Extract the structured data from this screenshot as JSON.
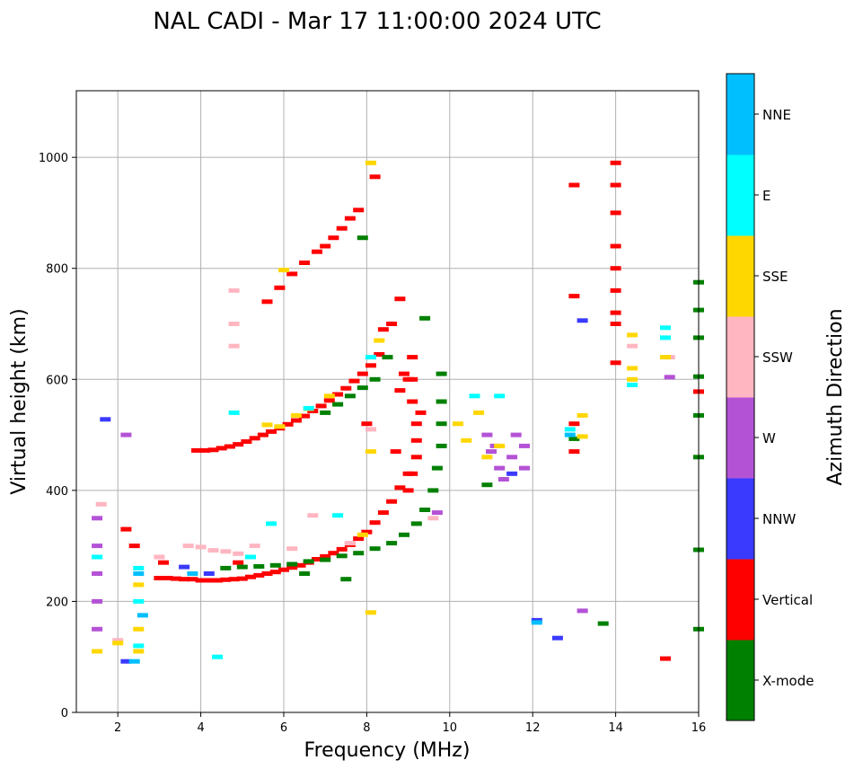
{
  "chart_data": {
    "type": "scatter",
    "title": "NAL CADI - Mar 17 11:00:00 2024 UTC",
    "xlabel": "Frequency (MHz)",
    "ylabel": "Virtual height (km)",
    "xlim": [
      1,
      16
    ],
    "ylim": [
      0,
      1120
    ],
    "xticks": [
      2,
      4,
      6,
      8,
      10,
      12,
      14,
      16
    ],
    "yticks": [
      0,
      200,
      400,
      600,
      800,
      1000
    ],
    "grid": true,
    "colorbar": {
      "label": "Azimuth Direction",
      "categories": [
        "X-mode",
        "Vertical",
        "NNW",
        "W",
        "SSW",
        "SSE",
        "E",
        "NNE"
      ],
      "colors": [
        "#008000",
        "#ff0000",
        "#3a3aff",
        "#b452d6",
        "#ffb6c1",
        "#ffd700",
        "#00ffff",
        "#00bfff"
      ]
    },
    "series": [
      {
        "name": "Vertical",
        "color": "#ff0000",
        "points": [
          [
            3.0,
            242
          ],
          [
            3.2,
            242
          ],
          [
            3.4,
            241
          ],
          [
            3.6,
            240
          ],
          [
            3.8,
            240
          ],
          [
            4.0,
            238
          ],
          [
            4.2,
            238
          ],
          [
            4.4,
            238
          ],
          [
            4.6,
            239
          ],
          [
            4.8,
            240
          ],
          [
            5.0,
            241
          ],
          [
            5.2,
            244
          ],
          [
            5.4,
            247
          ],
          [
            5.6,
            250
          ],
          [
            5.8,
            253
          ],
          [
            6.0,
            257
          ],
          [
            6.2,
            261
          ],
          [
            6.4,
            265
          ],
          [
            6.6,
            270
          ],
          [
            6.8,
            276
          ],
          [
            7.0,
            281
          ],
          [
            7.2,
            287
          ],
          [
            7.4,
            294
          ],
          [
            7.6,
            302
          ],
          [
            7.8,
            313
          ],
          [
            8.0,
            325
          ],
          [
            8.2,
            342
          ],
          [
            8.4,
            360
          ],
          [
            8.6,
            380
          ],
          [
            8.8,
            405
          ],
          [
            9.0,
            430
          ],
          [
            3.9,
            472
          ],
          [
            4.1,
            472
          ],
          [
            4.3,
            473
          ],
          [
            4.5,
            476
          ],
          [
            4.7,
            479
          ],
          [
            4.9,
            483
          ],
          [
            5.1,
            488
          ],
          [
            5.3,
            494
          ],
          [
            5.5,
            500
          ],
          [
            5.7,
            506
          ],
          [
            5.9,
            512
          ],
          [
            6.1,
            519
          ],
          [
            6.3,
            526
          ],
          [
            6.5,
            534
          ],
          [
            6.7,
            543
          ],
          [
            6.9,
            552
          ],
          [
            7.1,
            562
          ],
          [
            7.3,
            573
          ],
          [
            7.5,
            584
          ],
          [
            7.7,
            597
          ],
          [
            7.9,
            610
          ],
          [
            8.1,
            625
          ],
          [
            8.3,
            645
          ],
          [
            8.6,
            700
          ],
          [
            8.8,
            745
          ],
          [
            5.6,
            740
          ],
          [
            5.9,
            765
          ],
          [
            6.2,
            790
          ],
          [
            6.5,
            810
          ],
          [
            6.8,
            830
          ],
          [
            7.0,
            840
          ],
          [
            7.2,
            855
          ],
          [
            7.4,
            872
          ],
          [
            7.6,
            890
          ],
          [
            7.8,
            905
          ],
          [
            8.2,
            965
          ],
          [
            9.1,
            640
          ],
          [
            9.1,
            600
          ],
          [
            9.1,
            560
          ],
          [
            9.2,
            520
          ],
          [
            9.2,
            490
          ],
          [
            9.2,
            460
          ],
          [
            9.1,
            430
          ],
          [
            9.0,
            400
          ],
          [
            9.3,
            540
          ],
          [
            9.0,
            600
          ],
          [
            8.8,
            580
          ],
          [
            8.9,
            610
          ],
          [
            8.7,
            470
          ],
          [
            14.0,
            990
          ],
          [
            14.0,
            950
          ],
          [
            14.0,
            900
          ],
          [
            14.0,
            840
          ],
          [
            14.0,
            800
          ],
          [
            14.0,
            760
          ],
          [
            14.0,
            720
          ],
          [
            14.0,
            700
          ],
          [
            14.0,
            630
          ],
          [
            13.0,
            950
          ],
          [
            13.0,
            750
          ],
          [
            13.0,
            520
          ],
          [
            13.0,
            470
          ],
          [
            15.2,
            97
          ],
          [
            16.0,
            578
          ],
          [
            2.2,
            330
          ],
          [
            2.4,
            300
          ],
          [
            3.1,
            270
          ],
          [
            4.9,
            270
          ],
          [
            8.4,
            690
          ],
          [
            8.0,
            520
          ]
        ]
      },
      {
        "name": "X-mode",
        "color": "#008000",
        "points": [
          [
            4.6,
            260
          ],
          [
            5.0,
            262
          ],
          [
            5.4,
            263
          ],
          [
            5.8,
            265
          ],
          [
            6.2,
            267
          ],
          [
            6.6,
            272
          ],
          [
            7.0,
            275
          ],
          [
            7.4,
            282
          ],
          [
            7.8,
            287
          ],
          [
            8.2,
            295
          ],
          [
            8.6,
            305
          ],
          [
            8.9,
            320
          ],
          [
            9.2,
            340
          ],
          [
            9.4,
            365
          ],
          [
            9.6,
            400
          ],
          [
            9.7,
            440
          ],
          [
            9.8,
            480
          ],
          [
            9.8,
            520
          ],
          [
            9.8,
            560
          ],
          [
            9.8,
            610
          ],
          [
            7.0,
            540
          ],
          [
            7.3,
            555
          ],
          [
            7.6,
            570
          ],
          [
            7.9,
            585
          ],
          [
            8.2,
            600
          ],
          [
            8.5,
            640
          ],
          [
            9.4,
            710
          ],
          [
            7.9,
            855
          ],
          [
            13.0,
            493
          ],
          [
            13.7,
            160
          ],
          [
            16.0,
            775
          ],
          [
            16.0,
            675
          ],
          [
            16.0,
            605
          ],
          [
            16.0,
            535
          ],
          [
            16.0,
            460
          ],
          [
            16.0,
            293
          ],
          [
            16.0,
            150
          ],
          [
            16.0,
            725
          ],
          [
            10.9,
            410
          ],
          [
            6.5,
            250
          ],
          [
            7.5,
            240
          ]
        ]
      },
      {
        "name": "NNW",
        "color": "#3a3aff",
        "points": [
          [
            1.7,
            528
          ],
          [
            13.2,
            706
          ],
          [
            12.6,
            134
          ],
          [
            12.1,
            166
          ],
          [
            11.5,
            430
          ],
          [
            2.2,
            92
          ],
          [
            4.2,
            250
          ],
          [
            3.6,
            262
          ]
        ]
      },
      {
        "name": "W",
        "color": "#b452d6",
        "points": [
          [
            1.5,
            350
          ],
          [
            1.5,
            300
          ],
          [
            1.5,
            250
          ],
          [
            1.5,
            200
          ],
          [
            1.5,
            150
          ],
          [
            2.2,
            500
          ],
          [
            10.9,
            500
          ],
          [
            11.0,
            470
          ],
          [
            11.1,
            480
          ],
          [
            11.2,
            440
          ],
          [
            11.3,
            420
          ],
          [
            11.5,
            460
          ],
          [
            11.6,
            500
          ],
          [
            11.8,
            480
          ],
          [
            11.8,
            440
          ],
          [
            9.7,
            360
          ],
          [
            15.3,
            604
          ],
          [
            13.2,
            183
          ]
        ]
      },
      {
        "name": "SSW",
        "color": "#ffb6c1",
        "points": [
          [
            3.7,
            300
          ],
          [
            4.0,
            298
          ],
          [
            4.3,
            292
          ],
          [
            4.6,
            290
          ],
          [
            4.9,
            286
          ],
          [
            4.8,
            760
          ],
          [
            4.8,
            700
          ],
          [
            4.8,
            660
          ],
          [
            5.3,
            300
          ],
          [
            6.2,
            295
          ],
          [
            6.7,
            355
          ],
          [
            7.6,
            305
          ],
          [
            8.1,
            510
          ],
          [
            9.6,
            350
          ],
          [
            14.4,
            660
          ],
          [
            15.3,
            640
          ],
          [
            2.0,
            130
          ],
          [
            1.6,
            375
          ],
          [
            3.0,
            280
          ]
        ]
      },
      {
        "name": "SSE",
        "color": "#ffd700",
        "points": [
          [
            5.6,
            518
          ],
          [
            6.0,
            797
          ],
          [
            6.3,
            535
          ],
          [
            6.6,
            547
          ],
          [
            7.1,
            570
          ],
          [
            8.1,
            990
          ],
          [
            8.1,
            470
          ],
          [
            8.1,
            180
          ],
          [
            8.3,
            670
          ],
          [
            10.2,
            520
          ],
          [
            10.4,
            490
          ],
          [
            10.7,
            540
          ],
          [
            10.9,
            460
          ],
          [
            11.2,
            480
          ],
          [
            13.2,
            535
          ],
          [
            13.2,
            497
          ],
          [
            14.4,
            680
          ],
          [
            14.4,
            620
          ],
          [
            14.4,
            600
          ],
          [
            15.2,
            640
          ],
          [
            2.5,
            230
          ],
          [
            2.5,
            150
          ],
          [
            2.5,
            110
          ],
          [
            1.5,
            110
          ],
          [
            2.0,
            125
          ],
          [
            5.9,
            515
          ],
          [
            7.9,
            320
          ]
        ]
      },
      {
        "name": "E",
        "color": "#00ffff",
        "points": [
          [
            2.5,
            260
          ],
          [
            2.5,
            200
          ],
          [
            2.5,
            120
          ],
          [
            1.5,
            280
          ],
          [
            4.4,
            100
          ],
          [
            4.8,
            540
          ],
          [
            5.7,
            340
          ],
          [
            8.1,
            640
          ],
          [
            10.6,
            570
          ],
          [
            11.2,
            570
          ],
          [
            14.4,
            590
          ],
          [
            15.2,
            675
          ],
          [
            15.2,
            693
          ],
          [
            7.3,
            355
          ],
          [
            6.6,
            548
          ],
          [
            12.9,
            510
          ],
          [
            5.2,
            280
          ]
        ]
      },
      {
        "name": "NNE",
        "color": "#00bfff",
        "points": [
          [
            2.5,
            250
          ],
          [
            12.1,
            162
          ],
          [
            2.4,
            92
          ],
          [
            2.6,
            175
          ],
          [
            12.9,
            500
          ],
          [
            3.8,
            250
          ]
        ]
      }
    ]
  }
}
